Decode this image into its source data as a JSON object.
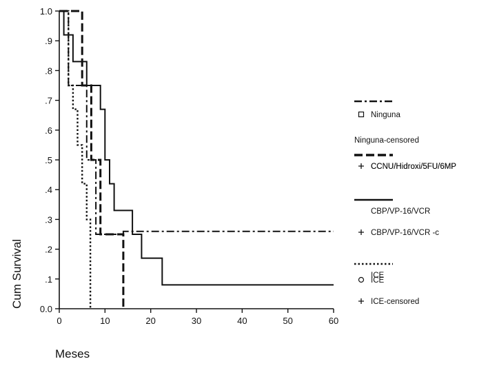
{
  "chart_data": {
    "type": "line",
    "subtype": "kaplan-meier step plot",
    "title": "",
    "xlabel": "Meses",
    "ylabel": "Cum Survival",
    "xlim": [
      0,
      60
    ],
    "ylim": [
      0,
      1
    ],
    "x_ticks": [
      0,
      10,
      20,
      30,
      40,
      50,
      60
    ],
    "y_ticks": [
      0.0,
      0.1,
      0.2,
      0.3,
      0.4,
      0.5,
      0.6,
      0.7,
      0.8,
      0.9,
      1.0
    ],
    "y_tick_labels": [
      "0.0",
      ".1",
      ".2",
      ".3",
      ".4",
      ".5",
      ".6",
      ".7",
      ".8",
      ".9",
      "1.0"
    ],
    "grid": false,
    "legend_position": "right",
    "colors": {
      "ink": "#111111",
      "background": "#ffffff"
    },
    "series": [
      {
        "group": "Ninguna",
        "line_style": "dash-dot",
        "marker": "square",
        "points": [
          [
            0,
            1.0
          ],
          [
            2,
            1.0
          ],
          [
            2,
            0.75
          ],
          [
            6,
            0.75
          ],
          [
            6,
            0.5
          ],
          [
            8,
            0.5
          ],
          [
            8,
            0.25
          ],
          [
            14,
            0.25
          ],
          [
            14,
            0.26
          ],
          [
            60,
            0.26
          ]
        ]
      },
      {
        "group": "CCNU/Hidroxi/5FU/6MP",
        "line_style": "dashed",
        "marker": "cross",
        "points": [
          [
            0,
            1.0
          ],
          [
            5,
            1.0
          ],
          [
            5,
            0.75
          ],
          [
            7,
            0.75
          ],
          [
            7,
            0.5
          ],
          [
            9,
            0.5
          ],
          [
            9,
            0.25
          ],
          [
            14,
            0.25
          ],
          [
            14,
            0.0
          ]
        ]
      },
      {
        "group": "CBP/VP-16/VCR",
        "line_style": "solid",
        "marker": "square",
        "points": [
          [
            0,
            1.0
          ],
          [
            1,
            1.0
          ],
          [
            1,
            0.92
          ],
          [
            3,
            0.92
          ],
          [
            3,
            0.83
          ],
          [
            6,
            0.83
          ],
          [
            6,
            0.75
          ],
          [
            9,
            0.75
          ],
          [
            9,
            0.67
          ],
          [
            10,
            0.67
          ],
          [
            10,
            0.5
          ],
          [
            11,
            0.5
          ],
          [
            11,
            0.42
          ],
          [
            12,
            0.42
          ],
          [
            12,
            0.33
          ],
          [
            16,
            0.33
          ],
          [
            16,
            0.25
          ],
          [
            18,
            0.25
          ],
          [
            18,
            0.17
          ],
          [
            22.5,
            0.17
          ],
          [
            22.5,
            0.08
          ],
          [
            60,
            0.08
          ]
        ]
      },
      {
        "group": "ICE",
        "line_style": "dotted",
        "marker": "circle",
        "points": [
          [
            0,
            1.0
          ],
          [
            2,
            1.0
          ],
          [
            2,
            0.75
          ],
          [
            3,
            0.75
          ],
          [
            3,
            0.67
          ],
          [
            4,
            0.67
          ],
          [
            4,
            0.55
          ],
          [
            5,
            0.55
          ],
          [
            5,
            0.42
          ],
          [
            6,
            0.42
          ],
          [
            6,
            0.3
          ],
          [
            6.8,
            0.3
          ],
          [
            6.8,
            0.0
          ]
        ]
      }
    ],
    "legend": [
      {
        "kind": "line",
        "style": "dash-dot",
        "label": ""
      },
      {
        "kind": "marker",
        "marker": "square",
        "label": "Ninguna"
      },
      {
        "kind": "text",
        "label": "Ninguna-censored"
      },
      {
        "kind": "line",
        "style": "dashed",
        "label": "CCNU/Hidroxi/5FU/6MP"
      },
      {
        "kind": "marker",
        "marker": "cross",
        "label": "CCNU/Hidroxi/5FU/6MP"
      },
      {
        "kind": "line",
        "style": "solid",
        "label": "CBP/VP-16/VCR"
      },
      {
        "kind": "marker",
        "marker": "cross",
        "label": "CBP/VP-16/VCR -c"
      },
      {
        "kind": "line",
        "style": "dotted",
        "label": "ICE"
      },
      {
        "kind": "marker",
        "marker": "circle",
        "label": "ICE"
      },
      {
        "kind": "marker",
        "marker": "cross",
        "label": "ICE-censored"
      }
    ]
  }
}
